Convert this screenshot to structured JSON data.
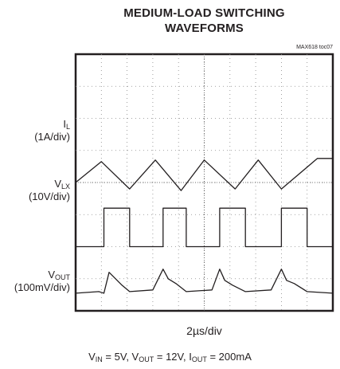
{
  "title_line1": "MEDIUM-LOAD SWITCHING",
  "title_line2": "WAVEFORMS",
  "figure_tag": "MAX618 toc07",
  "timebase": "2µs/div",
  "conditions": {
    "vin": "5V",
    "vout": "12V",
    "iout": "200mA"
  },
  "channels": [
    {
      "name": "I",
      "sub": "L",
      "scale": "(1A/div)"
    },
    {
      "name": "V",
      "sub": "LX",
      "scale": "(10V/div)"
    },
    {
      "name": "V",
      "sub": "OUT",
      "scale": "(100mV/div)"
    }
  ],
  "chart_data": {
    "type": "line",
    "title": "MEDIUM-LOAD SWITCHING WAVEFORMS",
    "xlabel": "2µs/div",
    "grid": true,
    "divisions": {
      "x": 10,
      "y": 8
    },
    "x_unit": "div",
    "series": [
      {
        "name": "IL (1A/div)",
        "x": [
          0,
          1.0,
          2.1,
          3.1,
          4.1,
          5.0,
          6.2,
          7.1,
          8.0,
          9.4,
          10
        ],
        "values": [
          4.0,
          4.65,
          3.8,
          4.7,
          3.75,
          4.7,
          3.8,
          4.7,
          3.8,
          4.75,
          4.75
        ]
      },
      {
        "name": "VLX (10V/div)",
        "x": [
          0,
          1.1,
          1.1,
          2.1,
          2.1,
          3.4,
          3.4,
          4.3,
          4.3,
          5.6,
          5.6,
          6.6,
          6.6,
          8.0,
          8.0,
          9.0,
          9.0,
          10
        ],
        "values": [
          2.0,
          2.0,
          3.2,
          3.2,
          2.0,
          2.0,
          3.2,
          3.2,
          2.0,
          2.0,
          3.2,
          3.2,
          2.0,
          2.0,
          3.2,
          3.2,
          2.0,
          2.0
        ]
      },
      {
        "name": "VOUT (100mV/div)",
        "x": [
          0,
          0.9,
          1.1,
          1.3,
          1.8,
          2.1,
          3.0,
          3.4,
          3.6,
          3.9,
          4.3,
          5.3,
          5.6,
          5.8,
          6.1,
          6.6,
          7.6,
          8.0,
          8.2,
          8.5,
          9.0,
          10
        ],
        "values": [
          0.55,
          0.6,
          0.55,
          1.2,
          0.8,
          0.6,
          0.65,
          1.3,
          1.0,
          0.85,
          0.6,
          0.65,
          1.3,
          0.95,
          0.8,
          0.6,
          0.65,
          1.3,
          0.95,
          0.85,
          0.6,
          0.55
        ]
      }
    ]
  }
}
